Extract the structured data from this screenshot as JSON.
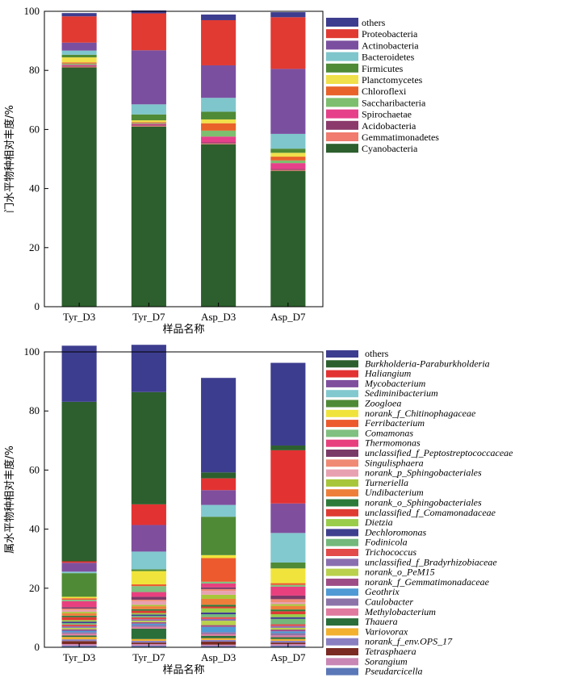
{
  "chart_data": [
    {
      "type": "bar",
      "stacked": true,
      "ylabel": "门水平物种相对丰度/%",
      "xlabel": "样品名称",
      "ylim": [
        0,
        100
      ],
      "yticks": [
        "0",
        "20",
        "40",
        "60",
        "80",
        "100"
      ],
      "categories": [
        "Tyr_D3",
        "Tyr_D7",
        "Asp_D3",
        "Asp_D7"
      ],
      "legend_position": "right",
      "series": [
        {
          "name": "Cyanobacteria",
          "color": "#2c5f2d",
          "values": [
            81.0,
            61.0,
            55.0,
            46.0
          ]
        },
        {
          "name": "Gemmatimonadetes",
          "color": "#f07b6e",
          "values": [
            0.3,
            0.3,
            0.3,
            0.3
          ]
        },
        {
          "name": "Acidobacteria",
          "color": "#8b3a6b",
          "values": [
            0.3,
            0.3,
            0.3,
            0.3
          ]
        },
        {
          "name": "Spirochaetae",
          "color": "#e6408a",
          "values": [
            0.3,
            0.3,
            2.0,
            2.0
          ]
        },
        {
          "name": "Saccharibacteria",
          "color": "#7dbf6e",
          "values": [
            0.4,
            0.3,
            2.0,
            0.9
          ]
        },
        {
          "name": "Chloroflexi",
          "color": "#e8622a",
          "values": [
            0.4,
            0.3,
            2.5,
            1.3
          ]
        },
        {
          "name": "Planctomycetes",
          "color": "#f0e04a",
          "values": [
            1.7,
            0.6,
            1.3,
            1.3
          ]
        },
        {
          "name": "Firmicutes",
          "color": "#4f8a36",
          "values": [
            0.9,
            2.0,
            2.6,
            1.4
          ]
        },
        {
          "name": "Bacteroidetes",
          "color": "#7ec6cc",
          "values": [
            1.4,
            3.4,
            4.7,
            5.0
          ]
        },
        {
          "name": "Actinobacteria",
          "color": "#7b4fa0",
          "values": [
            2.7,
            18.3,
            11.0,
            22.0
          ]
        },
        {
          "name": "Proteobacteria",
          "color": "#e03a32",
          "values": [
            8.9,
            12.5,
            15.3,
            17.5
          ]
        },
        {
          "name": "others",
          "color": "#3d3d8f",
          "values": [
            1.1,
            1.0,
            1.9,
            1.7
          ]
        }
      ]
    },
    {
      "type": "bar",
      "stacked": true,
      "ylabel": "属水平物种相对丰度/%",
      "xlabel": "样品名称",
      "ylim": [
        0,
        100
      ],
      "yticks": [
        "0",
        "20",
        "40",
        "60",
        "80",
        "100"
      ],
      "categories": [
        "Tyr_D3",
        "Tyr_D7",
        "Asp_D3",
        "Asp_D7"
      ],
      "legend_position": "right",
      "series": [
        {
          "name": "Pseudarcicella",
          "color": "#5a78b8",
          "values": [
            0.5,
            0.5,
            0.4,
            0.5
          ]
        },
        {
          "name": "Sorangium",
          "color": "#c987b5",
          "values": [
            0.6,
            0.6,
            0.5,
            0.6
          ]
        },
        {
          "name": "Tetrasphaera",
          "color": "#7a2a22",
          "values": [
            1.0,
            0.5,
            1.0,
            0.5
          ]
        },
        {
          "name": "norank_f_env.OPS_17",
          "color": "#8a7fc0",
          "values": [
            0.6,
            0.6,
            0.6,
            0.6
          ]
        },
        {
          "name": "Variovorax",
          "color": "#f2b12e",
          "values": [
            0.8,
            0.6,
            0.6,
            0.6
          ]
        },
        {
          "name": "Thauera",
          "color": "#2a6e3a",
          "values": [
            0.5,
            3.5,
            0.8,
            0.6
          ]
        },
        {
          "name": "Methylobacterium",
          "color": "#e07a9f",
          "values": [
            0.6,
            0.6,
            0.6,
            0.6
          ]
        },
        {
          "name": "Caulobacter",
          "color": "#8c74a8",
          "values": [
            0.5,
            0.6,
            0.6,
            0.8
          ]
        },
        {
          "name": "Geothrix",
          "color": "#4f9ad4",
          "values": [
            0.5,
            0.5,
            1.8,
            0.6
          ]
        },
        {
          "name": "norank_f_Gemmatimonadaceae",
          "color": "#9e4c86",
          "values": [
            0.5,
            0.5,
            0.6,
            0.6
          ]
        },
        {
          "name": "norank_o_PeM15",
          "color": "#b9d14c",
          "values": [
            0.5,
            0.5,
            1.5,
            0.6
          ]
        },
        {
          "name": "unclassified_f_Bradyrhizobiaceae",
          "color": "#8a6fb0",
          "values": [
            0.5,
            0.5,
            0.6,
            0.6
          ]
        },
        {
          "name": "Trichococcus",
          "color": "#e34a4a",
          "values": [
            0.6,
            0.6,
            0.6,
            0.6
          ]
        },
        {
          "name": "Fodinicola",
          "color": "#74b87c",
          "values": [
            0.5,
            0.5,
            1.0,
            1.8
          ]
        },
        {
          "name": "Dechloromonas",
          "color": "#3f3f8f",
          "values": [
            0.5,
            0.5,
            0.6,
            0.6
          ]
        },
        {
          "name": "Dietzia",
          "color": "#9acd4a",
          "values": [
            0.5,
            0.5,
            1.4,
            1.0
          ]
        },
        {
          "name": "unclassified_f_Comamonadaceae",
          "color": "#df3b33",
          "values": [
            1.0,
            0.8,
            0.6,
            1.0
          ]
        },
        {
          "name": "norank_o_Sphingobacteriales",
          "color": "#2d7b3a",
          "values": [
            0.5,
            0.5,
            0.6,
            0.6
          ]
        },
        {
          "name": "Undibacterium",
          "color": "#ee7f3a",
          "values": [
            0.8,
            1.0,
            2.0,
            1.2
          ]
        },
        {
          "name": "Turneriella",
          "color": "#a8c63a",
          "values": [
            0.5,
            0.5,
            1.4,
            0.6
          ]
        },
        {
          "name": "norank_p_Sphingobacteriales",
          "color": "#e8a1b1",
          "values": [
            0.6,
            1.2,
            1.3,
            0.7
          ]
        },
        {
          "name": "Singulisphaera",
          "color": "#f08a74",
          "values": [
            0.5,
            0.5,
            0.6,
            1.0
          ]
        },
        {
          "name": "unclassified_f_Peptostreptococcaceae",
          "color": "#7a3a68",
          "values": [
            0.5,
            1.0,
            0.6,
            1.2
          ]
        },
        {
          "name": "Thermomonas",
          "color": "#e8407f",
          "values": [
            2.0,
            1.6,
            1.3,
            3.0
          ]
        },
        {
          "name": "Comamonas",
          "color": "#80c080",
          "values": [
            0.5,
            2.0,
            0.6,
            0.6
          ]
        },
        {
          "name": "Ferribacterium",
          "color": "#ec5a2e",
          "values": [
            0.5,
            0.6,
            8.0,
            0.6
          ]
        },
        {
          "name": "norank_f_Chitinophagaceae",
          "color": "#f0e43c",
          "values": [
            0.5,
            4.5,
            1.0,
            5.0
          ]
        },
        {
          "name": "Zoogloea",
          "color": "#4f8a36",
          "values": [
            8.0,
            0.6,
            13.0,
            2.0
          ]
        },
        {
          "name": "Sediminibacterium",
          "color": "#82c8cf",
          "values": [
            0.5,
            6.0,
            4.0,
            10.0
          ]
        },
        {
          "name": "Mycobacterium",
          "color": "#7f4f9e",
          "values": [
            3.0,
            9.0,
            5.0,
            10.0
          ]
        },
        {
          "name": "Haliangium",
          "color": "#e33232",
          "values": [
            0.5,
            7.0,
            4.0,
            18.0
          ]
        },
        {
          "name": "Burkholderia-Paraburkholderia",
          "color": "#2c5f2d",
          "values": [
            54.0,
            38.0,
            2.0,
            1.6
          ]
        },
        {
          "name": "others",
          "color": "#3d3d8f",
          "values": [
            19.0,
            16.0,
            32.0,
            28.0
          ]
        }
      ]
    }
  ]
}
